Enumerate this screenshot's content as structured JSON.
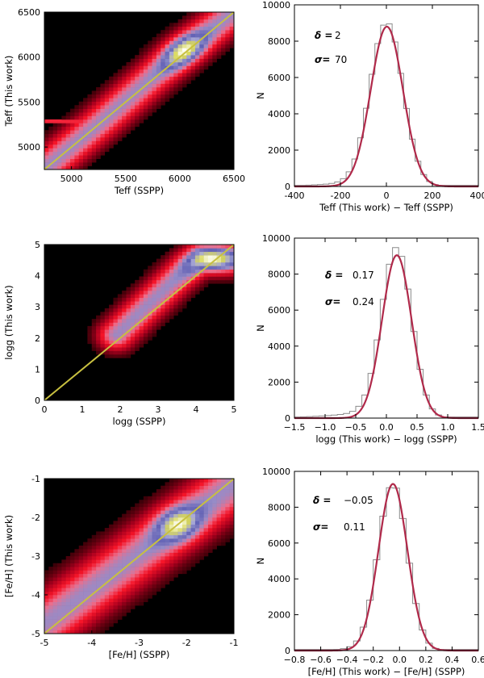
{
  "chart_data": [
    {
      "type": "heatmap",
      "id": "teff-density",
      "xlabel": "Teff (SSPP)",
      "ylabel": "Teff (This work)",
      "xlim": [
        4750,
        6500
      ],
      "ylim": [
        4750,
        6500
      ],
      "xticks": [
        5000,
        5500,
        6000,
        6500
      ],
      "yticks": [
        5000,
        5500,
        6000,
        6500
      ],
      "one_to_one_line": true,
      "band": {
        "points": [
          [
            4750,
            4760
          ],
          [
            5250,
            5255
          ],
          [
            6000,
            6040
          ],
          [
            6500,
            6500
          ]
        ],
        "width": 130,
        "peak": [
          6050,
          6060
        ],
        "stripe_y": 5280,
        "stripe_x": [
          4750,
          5200
        ]
      }
    },
    {
      "type": "histogram",
      "id": "teff-diff",
      "xlabel": "Teff (This work) − Teff (SSPP)",
      "ylabel": "N",
      "xlim": [
        -400,
        400
      ],
      "ylim": [
        0,
        10000
      ],
      "xticks": [
        -400,
        -200,
        0,
        200,
        400
      ],
      "yticks": [
        0,
        2000,
        4000,
        6000,
        8000,
        10000
      ],
      "annotation": {
        "delta_label": "δ =",
        "delta_value": "2",
        "sigma_label": "σ=",
        "sigma_value": "70"
      },
      "gaussian": {
        "mean": 2,
        "sigma": 70,
        "amplitude": 8800
      },
      "hist": {
        "bin_width": 25,
        "peak": 9050,
        "left_tail": 700,
        "left_tail_scale": 150
      }
    },
    {
      "type": "heatmap",
      "id": "logg-density",
      "xlabel": "logg (SSPP)",
      "ylabel": "logg (This work)",
      "xlim": [
        0,
        5
      ],
      "ylim": [
        0,
        5
      ],
      "xticks": [
        0,
        1,
        2,
        3,
        4,
        5
      ],
      "yticks": [
        0,
        1,
        2,
        3,
        4,
        5
      ],
      "one_to_one_line": true,
      "band": {
        "points": [
          [
            1.9,
            2.1
          ],
          [
            2.5,
            2.8
          ],
          [
            3.2,
            3.6
          ],
          [
            3.8,
            4.3
          ],
          [
            4.1,
            4.55
          ],
          [
            5.0,
            4.55
          ]
        ],
        "width": 0.35,
        "peak": [
          4.4,
          4.55
        ]
      }
    },
    {
      "type": "histogram",
      "id": "logg-diff",
      "xlabel": "logg (This work) − logg (SSPP)",
      "ylabel": "N",
      "xlim": [
        -1.5,
        1.5
      ],
      "ylim": [
        0,
        10000
      ],
      "xticks": [
        -1.5,
        -1.0,
        -0.5,
        0.0,
        0.5,
        1.0,
        1.5
      ],
      "yticks": [
        0,
        2000,
        4000,
        6000,
        8000,
        10000
      ],
      "annotation": {
        "delta_label": "δ =",
        "delta_value": "0.17",
        "sigma_label": "σ=",
        "sigma_value": "0.24"
      },
      "gaussian": {
        "mean": 0.17,
        "sigma": 0.24,
        "amplitude": 9050
      },
      "hist": {
        "bin_width": 0.1,
        "peak": 9500,
        "left_tail": 900,
        "left_tail_scale": 0.6
      }
    },
    {
      "type": "heatmap",
      "id": "feh-density",
      "xlabel": "[Fe/H] (SSPP)",
      "ylabel": "[Fe/H] (This work)",
      "xlim": [
        -5,
        -1
      ],
      "ylim": [
        -5,
        -1
      ],
      "xticks": [
        -5,
        -4,
        -3,
        -2,
        -1
      ],
      "yticks": [
        -5,
        -4,
        -3,
        -2,
        -1
      ],
      "one_to_one_line": true,
      "band": {
        "points": [
          [
            -5,
            -4.75
          ],
          [
            -3,
            -2.95
          ],
          [
            -1,
            -1.15
          ]
        ],
        "width": 0.45,
        "peak": [
          -2.2,
          -2.15
        ]
      }
    },
    {
      "type": "histogram",
      "id": "feh-diff",
      "xlabel": "[Fe/H] (This work) − [Fe/H] (SSPP)",
      "ylabel": "N",
      "xlim": [
        -0.8,
        0.6
      ],
      "ylim": [
        0,
        10000
      ],
      "xticks": [
        -0.8,
        -0.6,
        -0.4,
        -0.2,
        0.0,
        0.2,
        0.4,
        0.6
      ],
      "yticks": [
        0,
        2000,
        4000,
        6000,
        8000,
        10000
      ],
      "annotation": {
        "delta_label": "δ =",
        "delta_value": "−0.05",
        "sigma_label": "σ=",
        "sigma_value": "0.11"
      },
      "gaussian": {
        "mean": -0.05,
        "sigma": 0.11,
        "amplitude": 9300
      },
      "hist": {
        "bin_width": 0.05,
        "peak": 9300,
        "left_tail": 500,
        "left_tail_scale": 0.2
      }
    }
  ],
  "colors": {
    "gaussian_line": "#b0294a",
    "histogram_step": "#8a8a8a",
    "one_to_one_line": "#c8c040",
    "heatmap_background": "#000000"
  }
}
